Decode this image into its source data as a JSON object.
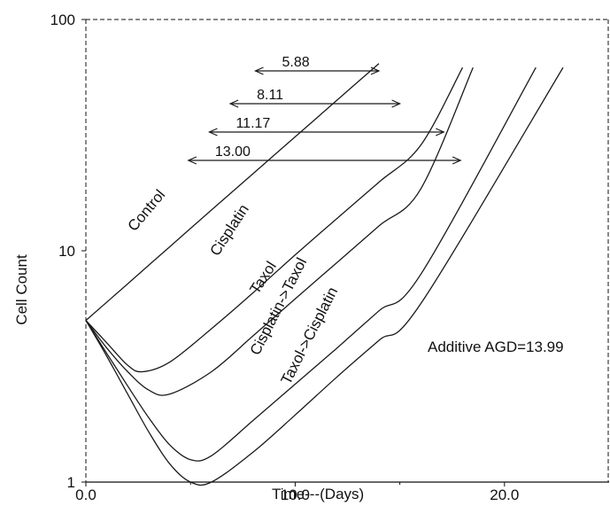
{
  "chart_data": {
    "type": "line",
    "xlabel": "Time---(Days)",
    "ylabel": "Cell Count",
    "xlim": [
      0,
      25
    ],
    "ylim": [
      1,
      100
    ],
    "yscale": "log",
    "x_ticks": [
      "0.0",
      "10.0",
      "20.0"
    ],
    "y_ticks": [
      "1",
      "10",
      "100"
    ],
    "grid": false,
    "legend": "none",
    "series": [
      {
        "name": "Control",
        "x": [
          0,
          2,
          4,
          6,
          8,
          10,
          12,
          14
        ],
        "y": [
          5.0,
          7.2,
          10.4,
          15.0,
          21.6,
          31.1,
          44.8,
          64.5
        ]
      },
      {
        "name": "Cisplatin",
        "x": [
          0,
          1,
          2,
          2.7,
          4,
          6,
          8,
          10,
          12,
          14,
          16,
          18
        ],
        "y": [
          5.0,
          4.0,
          3.2,
          3.0,
          3.3,
          4.6,
          6.6,
          9.6,
          13.8,
          19.8,
          28.6,
          62.0
        ]
      },
      {
        "name": "Taxol",
        "x": [
          0,
          1,
          2,
          3,
          4,
          6,
          8,
          10,
          12,
          14,
          16,
          18.5
        ],
        "y": [
          5.0,
          3.8,
          3.0,
          2.5,
          2.4,
          3.0,
          4.3,
          6.2,
          8.9,
          12.8,
          18.5,
          62.0
        ]
      },
      {
        "name": "Cisplatin->Taxol",
        "x": [
          0,
          1,
          2,
          3,
          4,
          5,
          6,
          8,
          10,
          12,
          14,
          16,
          21.5
        ],
        "y": [
          5.0,
          3.6,
          2.6,
          1.9,
          1.45,
          1.25,
          1.3,
          1.85,
          2.65,
          3.8,
          5.5,
          7.9,
          62.0
        ]
      },
      {
        "name": "Taxol->Cisplatin",
        "x": [
          0,
          1,
          2,
          3,
          4,
          5,
          6,
          8,
          10,
          12,
          14,
          16,
          22.8
        ],
        "y": [
          5.0,
          3.5,
          2.4,
          1.65,
          1.2,
          1.0,
          1.0,
          1.35,
          1.95,
          2.85,
          4.1,
          5.9,
          62.0
        ]
      }
    ],
    "annotations": [
      {
        "text": "5.88",
        "x_start": 8.1,
        "x_end": 14.0
      },
      {
        "text": "8.11",
        "x_start": 6.9,
        "x_end": 15.0
      },
      {
        "text": "11.17",
        "x_start": 5.9,
        "x_end": 17.1
      },
      {
        "text": "13.00",
        "x_start": 4.9,
        "x_end": 17.9
      },
      {
        "text": "Additive AGD=13.99"
      }
    ]
  }
}
